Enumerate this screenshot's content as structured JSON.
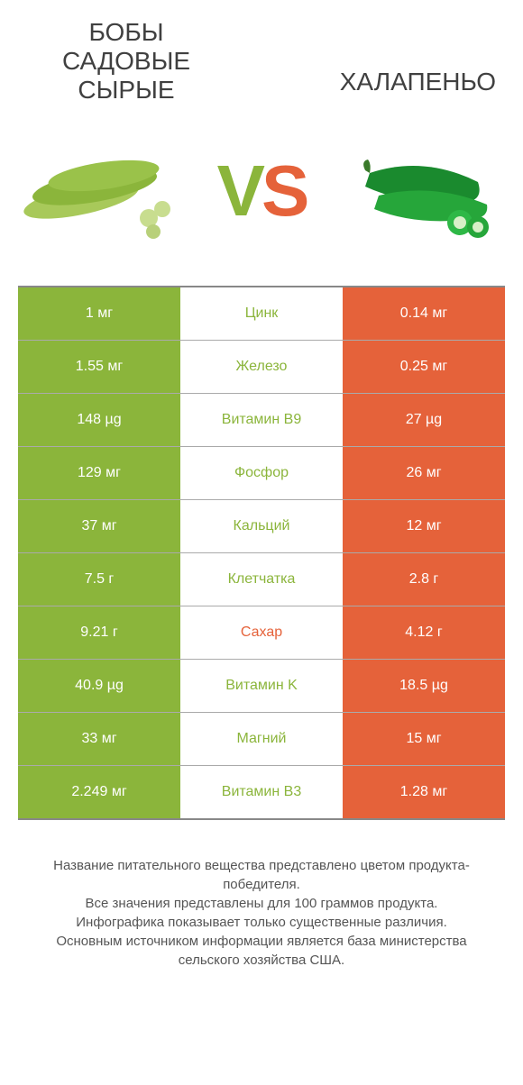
{
  "header": {
    "left_title": "БОБЫ САДОВЫЕ СЫРЫЕ",
    "right_title": "ХАЛАПЕНЬО",
    "vs_v": "V",
    "vs_s": "S"
  },
  "colors": {
    "green": "#8bb53b",
    "orange": "#e5623a",
    "text_dark": "#404040",
    "text_mid": "#555555"
  },
  "table": {
    "left_bg": "#8bb53b",
    "right_bg": "#e5623a",
    "rows": [
      {
        "left": "1 мг",
        "label": "Цинк",
        "label_color": "#8bb53b",
        "right": "0.14 мг"
      },
      {
        "left": "1.55 мг",
        "label": "Железо",
        "label_color": "#8bb53b",
        "right": "0.25 мг"
      },
      {
        "left": "148 µg",
        "label": "Витамин B9",
        "label_color": "#8bb53b",
        "right": "27 µg"
      },
      {
        "left": "129 мг",
        "label": "Фосфор",
        "label_color": "#8bb53b",
        "right": "26 мг"
      },
      {
        "left": "37 мг",
        "label": "Кальций",
        "label_color": "#8bb53b",
        "right": "12 мг"
      },
      {
        "left": "7.5 г",
        "label": "Клетчатка",
        "label_color": "#8bb53b",
        "right": "2.8 г"
      },
      {
        "left": "9.21 г",
        "label": "Сахар",
        "label_color": "#e5623a",
        "right": "4.12 г"
      },
      {
        "left": "40.9 µg",
        "label": "Витамин K",
        "label_color": "#8bb53b",
        "right": "18.5 µg"
      },
      {
        "left": "33 мг",
        "label": "Магний",
        "label_color": "#8bb53b",
        "right": "15 мг"
      },
      {
        "left": "2.249 мг",
        "label": "Витамин B3",
        "label_color": "#8bb53b",
        "right": "1.28 мг"
      }
    ]
  },
  "footer": {
    "line1": "Название питательного вещества представлено цветом продукта-победителя.",
    "line2": "Все значения представлены для 100 граммов продукта.",
    "line3": "Инфографика показывает только существенные различия.",
    "line4": "Основным источником информации является база министерства сельского хозяйства США."
  },
  "images": {
    "left_alt": "broad-beans",
    "right_alt": "jalapeno"
  }
}
